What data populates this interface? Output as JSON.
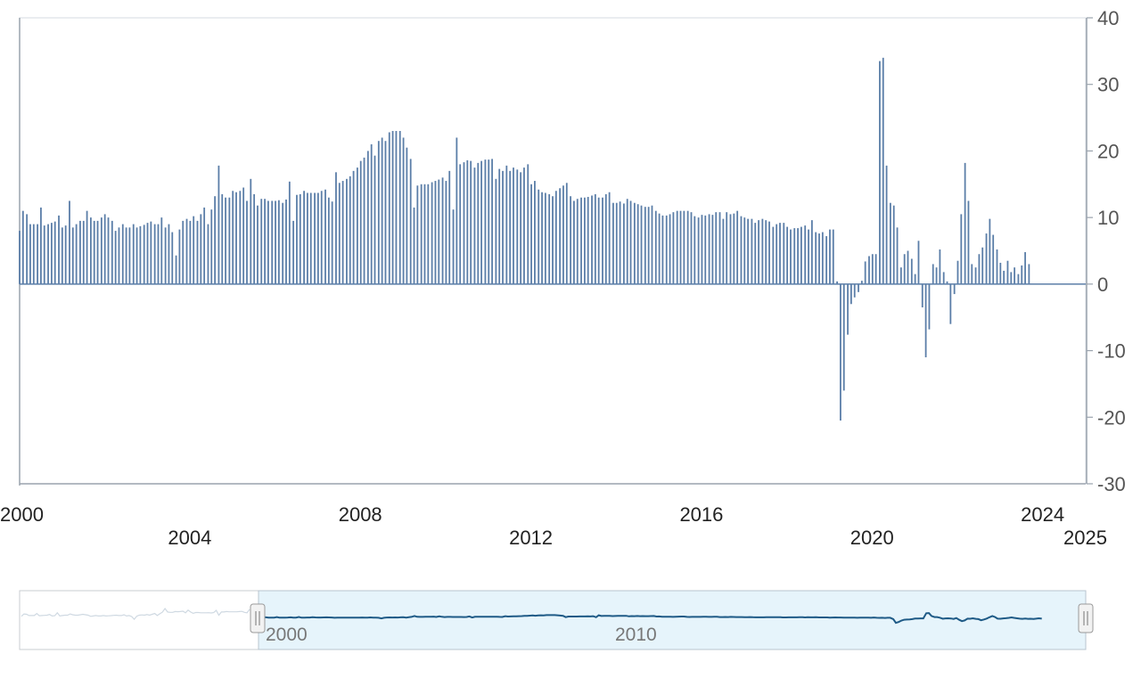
{
  "colors": {
    "bar": "#5b7ea8",
    "axis": "#9aa3ad",
    "plot_border": "#d6dbe0",
    "navigator_fill": "#e6f4fb",
    "navigator_line": "#1e5a86",
    "navigator_outline": "#c9cdd2"
  },
  "chart_data": {
    "type": "bar",
    "title": "",
    "xlabel": "",
    "ylabel": "",
    "xlim": [
      2000,
      2025
    ],
    "ylim": [
      -30,
      40
    ],
    "y_ticks": [
      40,
      30,
      20,
      10,
      0,
      -10,
      -20,
      -30
    ],
    "y_tick_labels": [
      "40",
      "30",
      "20",
      "10",
      "0",
      "-10",
      "-20",
      "-30"
    ],
    "x_tick_labels_upper": [
      "2000",
      "2008",
      "2016",
      "2024"
    ],
    "x_tick_labels_lower": [
      "2004",
      "2012",
      "2020",
      "2025"
    ],
    "grid": false,
    "legend": "none",
    "y_axis_side": "right",
    "series": [
      {
        "points": [
          [
            2000.0,
            8
          ],
          [
            2000.08,
            11
          ],
          [
            2000.17,
            10.5
          ],
          [
            2000.25,
            9
          ],
          [
            2000.33,
            9
          ],
          [
            2000.42,
            9
          ],
          [
            2000.5,
            11.5
          ],
          [
            2000.58,
            8.8
          ],
          [
            2000.67,
            9
          ],
          [
            2000.75,
            9.2
          ],
          [
            2000.83,
            9.4
          ],
          [
            2000.92,
            10.3
          ],
          [
            2001.0,
            8.5
          ],
          [
            2001.08,
            8.8
          ],
          [
            2001.17,
            12.5
          ],
          [
            2001.25,
            8.5
          ],
          [
            2001.33,
            9
          ],
          [
            2001.42,
            9.5
          ],
          [
            2001.5,
            9.5
          ],
          [
            2001.58,
            11
          ],
          [
            2001.67,
            10
          ],
          [
            2001.75,
            9.5
          ],
          [
            2001.83,
            9.5
          ],
          [
            2001.92,
            10
          ],
          [
            2002.0,
            10.5
          ],
          [
            2002.08,
            10
          ],
          [
            2002.17,
            9.5
          ],
          [
            2002.25,
            8
          ],
          [
            2002.33,
            8.5
          ],
          [
            2002.42,
            9
          ],
          [
            2002.5,
            8.5
          ],
          [
            2002.58,
            8.5
          ],
          [
            2002.67,
            9
          ],
          [
            2002.75,
            8.5
          ],
          [
            2002.83,
            8.7
          ],
          [
            2002.92,
            8.9
          ],
          [
            2003.0,
            9.2
          ],
          [
            2003.08,
            9.4
          ],
          [
            2003.17,
            9
          ],
          [
            2003.25,
            9
          ],
          [
            2003.33,
            10
          ],
          [
            2003.42,
            8.5
          ],
          [
            2003.5,
            9
          ],
          [
            2003.58,
            7.8
          ],
          [
            2003.67,
            4.3
          ],
          [
            2003.75,
            8.2
          ],
          [
            2003.83,
            9.5
          ],
          [
            2003.92,
            9.8
          ],
          [
            2004.0,
            9.5
          ],
          [
            2004.08,
            10.2
          ],
          [
            2004.17,
            9.5
          ],
          [
            2004.25,
            10.5
          ],
          [
            2004.33,
            11.5
          ],
          [
            2004.42,
            9
          ],
          [
            2004.5,
            11.2
          ],
          [
            2004.58,
            13.2
          ],
          [
            2004.67,
            17.8
          ],
          [
            2004.75,
            13.5
          ],
          [
            2004.83,
            13
          ],
          [
            2004.92,
            13
          ],
          [
            2005.0,
            14
          ],
          [
            2005.08,
            13.8
          ],
          [
            2005.17,
            14
          ],
          [
            2005.25,
            14.5
          ],
          [
            2005.33,
            12.5
          ],
          [
            2005.42,
            15.8
          ],
          [
            2005.5,
            13.5
          ],
          [
            2005.58,
            11.8
          ],
          [
            2005.67,
            12.8
          ],
          [
            2005.75,
            12.8
          ],
          [
            2005.83,
            12.5
          ],
          [
            2005.92,
            12.5
          ],
          [
            2006.0,
            12.5
          ],
          [
            2006.08,
            12.6
          ],
          [
            2006.17,
            12.2
          ],
          [
            2006.25,
            12.7
          ],
          [
            2006.33,
            15.4
          ],
          [
            2006.42,
            9.5
          ],
          [
            2006.5,
            13.4
          ],
          [
            2006.58,
            13.5
          ],
          [
            2006.67,
            14
          ],
          [
            2006.75,
            13.7
          ],
          [
            2006.83,
            13.7
          ],
          [
            2006.92,
            13.7
          ],
          [
            2007.0,
            13.7
          ],
          [
            2007.08,
            14
          ],
          [
            2007.17,
            14.2
          ],
          [
            2007.25,
            13
          ],
          [
            2007.33,
            12.4
          ],
          [
            2007.42,
            16.8
          ],
          [
            2007.5,
            15.2
          ],
          [
            2007.58,
            15.5
          ],
          [
            2007.67,
            15.8
          ],
          [
            2007.75,
            16.2
          ],
          [
            2007.83,
            17
          ],
          [
            2007.92,
            17.5
          ],
          [
            2008.0,
            18.5
          ],
          [
            2008.08,
            19
          ],
          [
            2008.17,
            20
          ],
          [
            2008.25,
            21
          ],
          [
            2008.33,
            19.3
          ],
          [
            2008.42,
            21.5
          ],
          [
            2008.5,
            22
          ],
          [
            2008.58,
            21.5
          ],
          [
            2008.67,
            22.8
          ],
          [
            2008.75,
            23
          ],
          [
            2008.83,
            23
          ],
          [
            2008.92,
            23
          ],
          [
            2009.0,
            22
          ],
          [
            2009.08,
            20.5
          ],
          [
            2009.17,
            18.8
          ],
          [
            2009.25,
            11.5
          ],
          [
            2009.33,
            14.8
          ],
          [
            2009.42,
            15
          ],
          [
            2009.5,
            15
          ],
          [
            2009.58,
            15
          ],
          [
            2009.67,
            15.3
          ],
          [
            2009.75,
            15.5
          ],
          [
            2009.83,
            15.7
          ],
          [
            2009.92,
            16
          ],
          [
            2010.0,
            15.5
          ],
          [
            2010.08,
            17
          ],
          [
            2010.17,
            11.2
          ],
          [
            2010.25,
            22
          ],
          [
            2010.33,
            18
          ],
          [
            2010.42,
            18.3
          ],
          [
            2010.5,
            18.6
          ],
          [
            2010.58,
            18.5
          ],
          [
            2010.67,
            17.5
          ],
          [
            2010.75,
            18.2
          ],
          [
            2010.83,
            18.5
          ],
          [
            2010.92,
            18.7
          ],
          [
            2011.0,
            18.7
          ],
          [
            2011.08,
            18.8
          ],
          [
            2011.17,
            15.8
          ],
          [
            2011.25,
            17.3
          ],
          [
            2011.33,
            17
          ],
          [
            2011.42,
            17.8
          ],
          [
            2011.5,
            17
          ],
          [
            2011.58,
            17.5
          ],
          [
            2011.67,
            17.2
          ],
          [
            2011.75,
            16.8
          ],
          [
            2011.83,
            17.5
          ],
          [
            2011.92,
            18
          ],
          [
            2012.0,
            15
          ],
          [
            2012.08,
            15.5
          ],
          [
            2012.17,
            14.2
          ],
          [
            2012.25,
            13.8
          ],
          [
            2012.33,
            13.7
          ],
          [
            2012.42,
            13.5
          ],
          [
            2012.5,
            13.2
          ],
          [
            2012.58,
            14
          ],
          [
            2012.67,
            14.4
          ],
          [
            2012.75,
            14.8
          ],
          [
            2012.83,
            15.2
          ],
          [
            2012.92,
            13.2
          ],
          [
            2013.0,
            12.5
          ],
          [
            2013.08,
            12.8
          ],
          [
            2013.17,
            13
          ],
          [
            2013.25,
            13
          ],
          [
            2013.33,
            13.1
          ],
          [
            2013.42,
            13.3
          ],
          [
            2013.5,
            13.5
          ],
          [
            2013.58,
            13
          ],
          [
            2013.67,
            13
          ],
          [
            2013.75,
            13.5
          ],
          [
            2013.83,
            13.8
          ],
          [
            2013.92,
            12.2
          ],
          [
            2014.0,
            12.2
          ],
          [
            2014.08,
            12.4
          ],
          [
            2014.17,
            12.1
          ],
          [
            2014.25,
            12.8
          ],
          [
            2014.33,
            12.5
          ],
          [
            2014.42,
            12.2
          ],
          [
            2014.5,
            12
          ],
          [
            2014.58,
            11.8
          ],
          [
            2014.67,
            11.6
          ],
          [
            2014.75,
            11.6
          ],
          [
            2014.83,
            11.8
          ],
          [
            2014.92,
            11
          ],
          [
            2015.0,
            10.6
          ],
          [
            2015.08,
            10.3
          ],
          [
            2015.17,
            10.3
          ],
          [
            2015.25,
            10.5
          ],
          [
            2015.33,
            10.8
          ],
          [
            2015.42,
            11
          ],
          [
            2015.5,
            11
          ],
          [
            2015.58,
            11
          ],
          [
            2015.67,
            11
          ],
          [
            2015.75,
            10.8
          ],
          [
            2015.83,
            10.2
          ],
          [
            2015.92,
            10
          ],
          [
            2016.0,
            10.4
          ],
          [
            2016.08,
            10.3
          ],
          [
            2016.17,
            10.5
          ],
          [
            2016.25,
            10.4
          ],
          [
            2016.33,
            10.8
          ],
          [
            2016.42,
            10.8
          ],
          [
            2016.5,
            9.8
          ],
          [
            2016.58,
            10.8
          ],
          [
            2016.67,
            10.5
          ],
          [
            2016.75,
            10.6
          ],
          [
            2016.83,
            11
          ],
          [
            2016.92,
            10.2
          ],
          [
            2017.0,
            10
          ],
          [
            2017.08,
            9.8
          ],
          [
            2017.17,
            9.8
          ],
          [
            2017.25,
            9.2
          ],
          [
            2017.33,
            9.6
          ],
          [
            2017.42,
            9.8
          ],
          [
            2017.5,
            9.6
          ],
          [
            2017.58,
            9.4
          ],
          [
            2017.67,
            8.6
          ],
          [
            2017.75,
            9
          ],
          [
            2017.83,
            9.2
          ],
          [
            2017.92,
            9.2
          ],
          [
            2018.0,
            8.6
          ],
          [
            2018.08,
            8.2
          ],
          [
            2018.17,
            8.4
          ],
          [
            2018.25,
            8.4
          ],
          [
            2018.33,
            8.6
          ],
          [
            2018.42,
            8.8
          ],
          [
            2018.5,
            8.2
          ],
          [
            2018.58,
            9.6
          ],
          [
            2018.67,
            7.8
          ],
          [
            2018.75,
            7.6
          ],
          [
            2018.83,
            7.8
          ],
          [
            2018.92,
            7.2
          ],
          [
            2019.0,
            8.2
          ],
          [
            2019.08,
            8.2
          ],
          [
            2019.17,
            0.4
          ],
          [
            2019.25,
            -20.5
          ],
          [
            2019.33,
            -16
          ],
          [
            2019.42,
            -7.6
          ],
          [
            2019.5,
            -3
          ],
          [
            2019.58,
            -2
          ],
          [
            2019.67,
            -1.2
          ],
          [
            2019.75,
            0.5
          ],
          [
            2019.83,
            3.4
          ],
          [
            2019.92,
            4.2
          ],
          [
            2020.0,
            4.5
          ],
          [
            2020.08,
            4.5
          ],
          [
            2020.17,
            33.5
          ],
          [
            2020.25,
            34
          ],
          [
            2020.33,
            17.8
          ],
          [
            2020.42,
            12.2
          ],
          [
            2020.5,
            11.8
          ],
          [
            2020.58,
            8.5
          ],
          [
            2020.67,
            2.5
          ],
          [
            2020.75,
            4.5
          ],
          [
            2020.83,
            5
          ],
          [
            2020.92,
            3.8
          ],
          [
            2021.0,
            1.5
          ],
          [
            2021.08,
            6.5
          ],
          [
            2021.17,
            -3.5
          ],
          [
            2021.25,
            -11
          ],
          [
            2021.33,
            -6.8
          ],
          [
            2021.42,
            3
          ],
          [
            2021.5,
            2.5
          ],
          [
            2021.58,
            5.2
          ],
          [
            2021.67,
            1.8
          ],
          [
            2021.75,
            0.4
          ],
          [
            2021.83,
            -6
          ],
          [
            2021.92,
            -1.5
          ],
          [
            2022.0,
            3.5
          ],
          [
            2022.08,
            10.5
          ],
          [
            2022.17,
            18.2
          ],
          [
            2022.25,
            12.5
          ],
          [
            2022.33,
            3
          ],
          [
            2022.42,
            2.5
          ],
          [
            2022.5,
            4.5
          ],
          [
            2022.58,
            5.5
          ],
          [
            2022.67,
            7.6
          ],
          [
            2022.75,
            9.8
          ],
          [
            2022.83,
            7.4
          ],
          [
            2022.92,
            5.2
          ],
          [
            2023.0,
            3.2
          ],
          [
            2023.08,
            2
          ],
          [
            2023.17,
            3.5
          ],
          [
            2023.25,
            1.8
          ],
          [
            2023.33,
            2.5
          ],
          [
            2023.42,
            1.5
          ],
          [
            2023.5,
            2.8
          ],
          [
            2023.58,
            4.8
          ],
          [
            2023.67,
            3
          ]
        ]
      }
    ]
  },
  "navigator": {
    "labels": [
      "2000",
      "2010"
    ]
  }
}
